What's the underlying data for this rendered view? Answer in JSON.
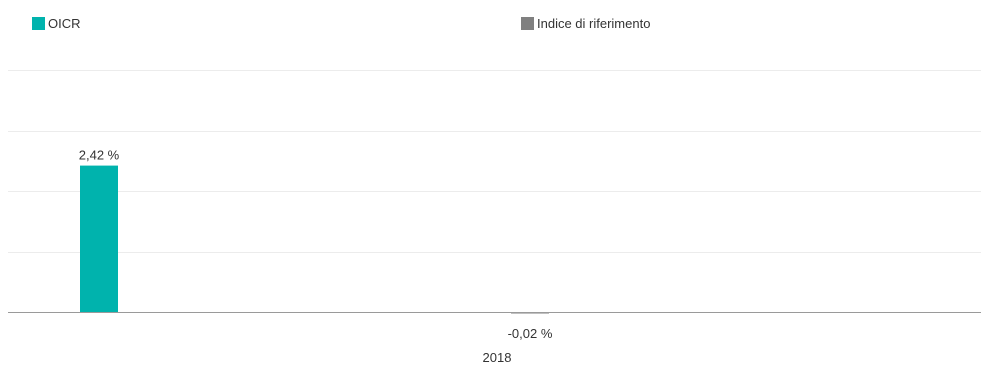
{
  "colors": {
    "oicr": "#00b3ad",
    "benchmark": "#808080",
    "grid": "#ececec",
    "baseline": "#9a9a9a",
    "text": "#333333"
  },
  "legend": [
    {
      "label": "OICR",
      "color": "#00b3ad"
    },
    {
      "label": "Indice di riferimento",
      "color": "#808080"
    }
  ],
  "chart_data": {
    "type": "bar",
    "categories": [
      "2018"
    ],
    "series": [
      {
        "name": "OICR",
        "values": [
          2.42
        ],
        "labels": [
          "2,42 %"
        ],
        "color": "#00b3ad"
      },
      {
        "name": "Indice di riferimento",
        "values": [
          -0.02
        ],
        "labels": [
          "-0,02 %"
        ],
        "color": "#808080"
      }
    ],
    "ylim": [
      0,
      4
    ],
    "grid": true,
    "legend_position": "top",
    "title": "",
    "xlabel": "",
    "ylabel": ""
  }
}
